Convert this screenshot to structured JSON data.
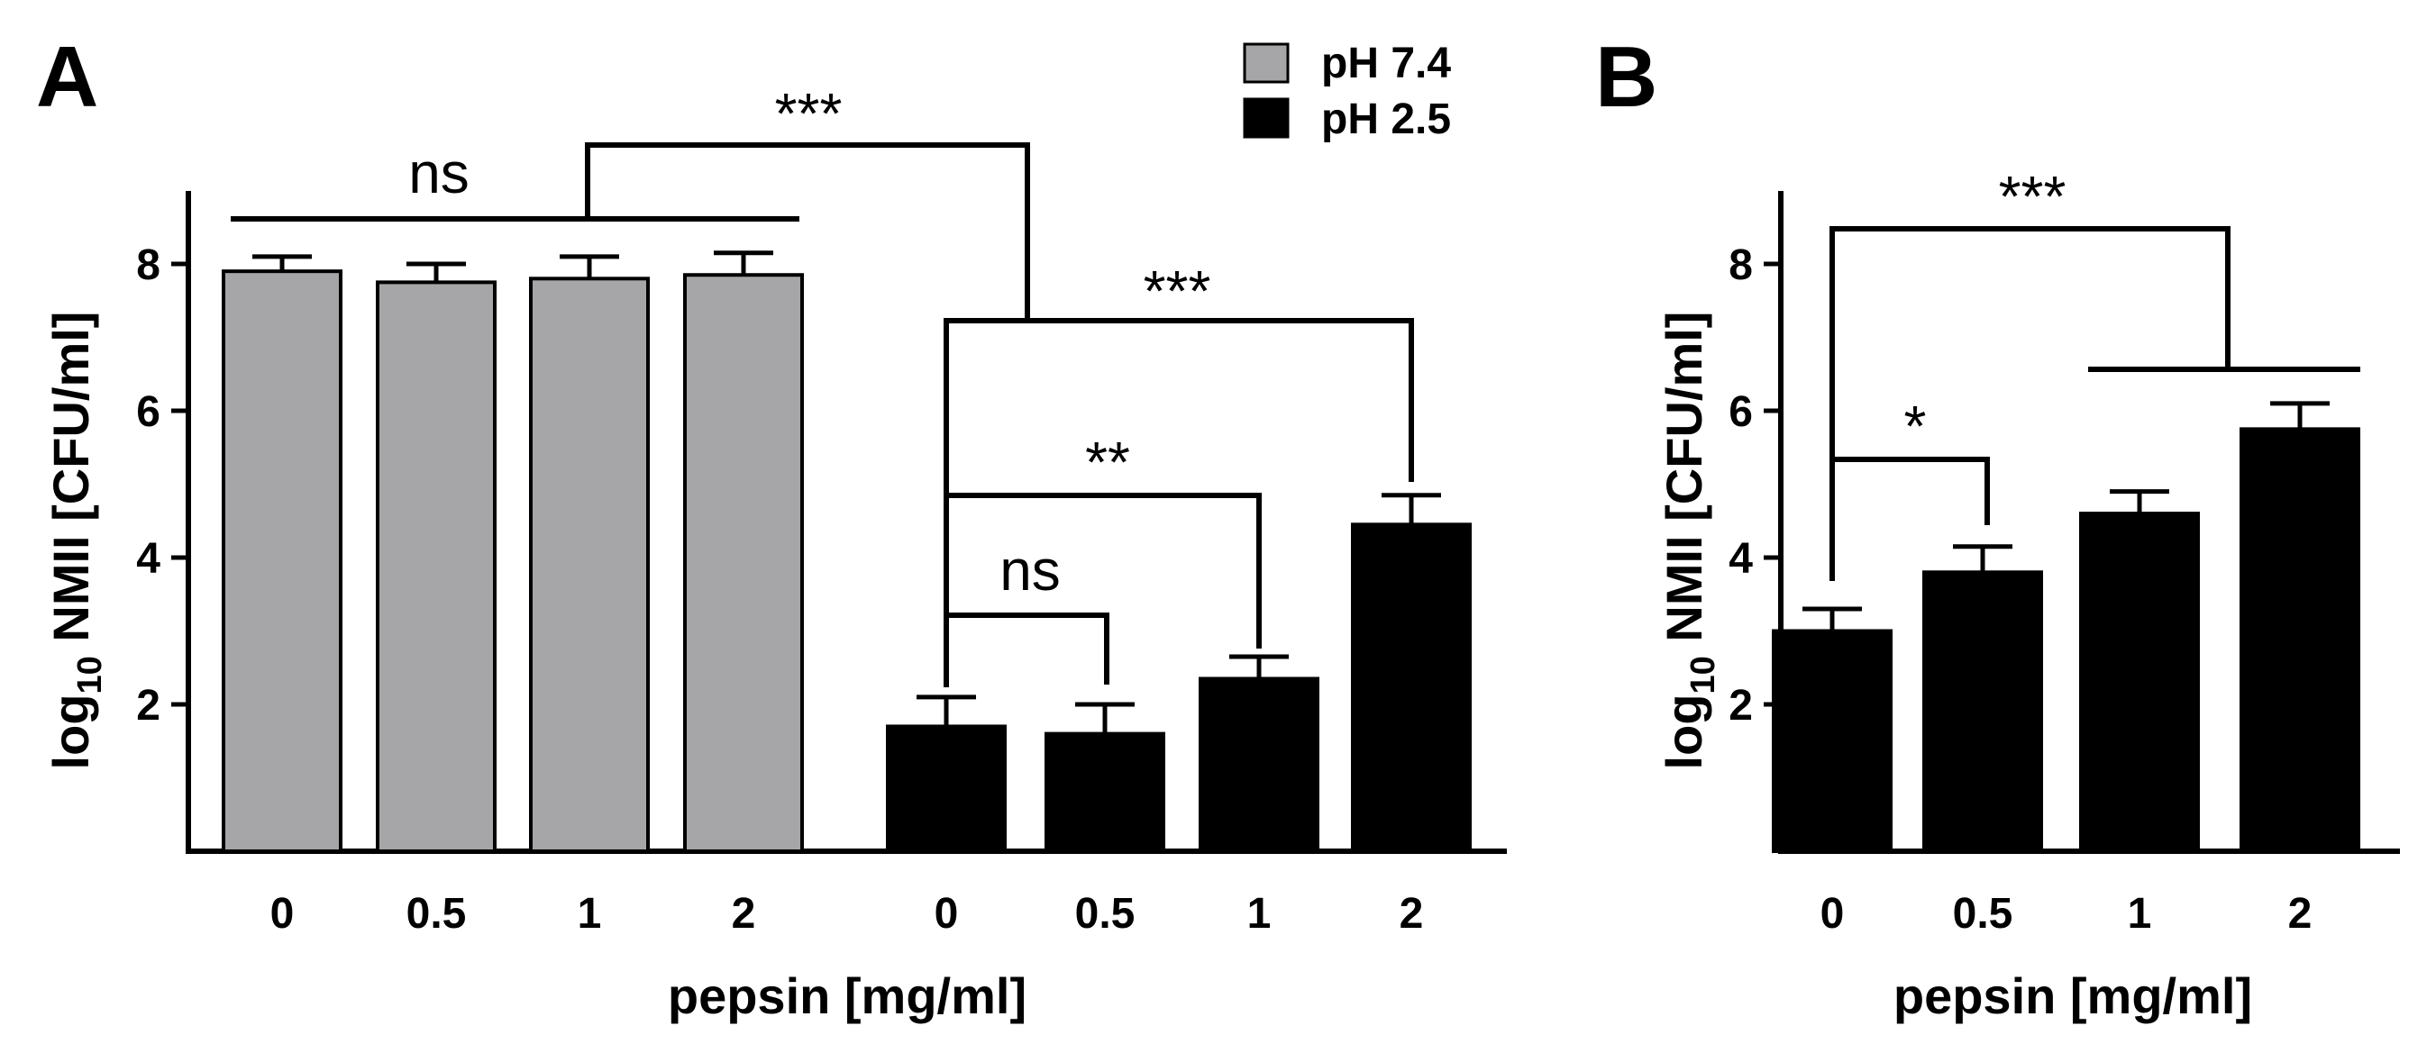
{
  "chart_data": [
    {
      "panel_label": "A",
      "type": "bar",
      "ylabel_main": "log",
      "ylabel_sub": "10",
      "ylabel_rest": " NMII [CFU/ml]",
      "xlabel": "pepsin [mg/ml]",
      "ylim": [
        0,
        9
      ],
      "yticks": [
        2,
        4,
        6,
        8
      ],
      "legend": [
        {
          "label": "pH 7.4",
          "color": "#a6a6a8"
        },
        {
          "label": "pH 2.5",
          "color": "#000000"
        }
      ],
      "series": [
        {
          "name": "pH 7.4",
          "color": "#a6a6a8",
          "categories": [
            "0",
            "0.5",
            "1",
            "2"
          ],
          "values": [
            7.9,
            7.75,
            7.8,
            7.85
          ],
          "errors": [
            0.2,
            0.25,
            0.3,
            0.3
          ]
        },
        {
          "name": "pH 2.5",
          "color": "#000000",
          "categories": [
            "0",
            "0.5",
            "1",
            "2"
          ],
          "values": [
            1.7,
            1.6,
            2.35,
            4.45
          ],
          "errors": [
            0.4,
            0.4,
            0.3,
            0.4
          ]
        }
      ],
      "annotations": [
        {
          "text": "ns",
          "label": "pH 7.4 groups"
        },
        {
          "text": "***",
          "label": "pH 7.4 vs pH 2.5"
        },
        {
          "text": "***",
          "label": "pH 2.5: 0 vs 2"
        },
        {
          "text": "**",
          "label": "pH 2.5: 0 vs 1"
        },
        {
          "text": "ns",
          "label": "pH 2.5: 0 vs 0.5"
        }
      ]
    },
    {
      "panel_label": "B",
      "type": "bar",
      "ylabel_main": "log",
      "ylabel_sub": "10",
      "ylabel_rest": " NMII [CFU/ml]",
      "xlabel": "pepsin [mg/ml]",
      "ylim": [
        0,
        9
      ],
      "yticks": [
        2,
        4,
        6,
        8
      ],
      "series": [
        {
          "name": "pepsin",
          "color": "#000000",
          "categories": [
            "0",
            "0.5",
            "1",
            "2"
          ],
          "values": [
            3.0,
            3.8,
            4.6,
            5.75
          ],
          "errors": [
            0.3,
            0.35,
            0.3,
            0.35
          ]
        }
      ],
      "annotations": [
        {
          "text": "***",
          "label": "0 vs 1 and 2"
        },
        {
          "text": "*",
          "label": "0 vs 0.5"
        }
      ]
    }
  ]
}
